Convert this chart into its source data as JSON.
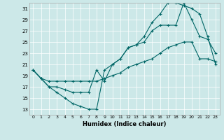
{
  "title": "",
  "xlabel": "Humidex (Indice chaleur)",
  "ylabel": "",
  "background_color": "#cce8e8",
  "grid_color": "#ffffff",
  "line_color": "#006666",
  "xlim": [
    -0.5,
    23.5
  ],
  "ylim": [
    12,
    32
  ],
  "yticks": [
    13,
    15,
    17,
    19,
    21,
    23,
    25,
    27,
    29,
    31
  ],
  "xticks": [
    0,
    1,
    2,
    3,
    4,
    5,
    6,
    7,
    8,
    9,
    10,
    11,
    12,
    13,
    14,
    15,
    16,
    17,
    18,
    19,
    20,
    21,
    22,
    23
  ],
  "series1": {
    "x": [
      0,
      1,
      2,
      3,
      4,
      5,
      6,
      7,
      8,
      9,
      10,
      11,
      12,
      13,
      14,
      15,
      16,
      17,
      18,
      19,
      20,
      21,
      22,
      23
    ],
    "y": [
      20,
      18.5,
      17,
      16,
      15,
      14,
      13.5,
      13,
      13,
      20,
      21,
      22,
      24,
      24.5,
      26,
      28.5,
      30,
      32,
      32,
      31.5,
      31,
      30,
      26,
      21
    ]
  },
  "series2": {
    "x": [
      0,
      1,
      2,
      3,
      4,
      5,
      6,
      7,
      8,
      9,
      10,
      11,
      12,
      13,
      14,
      15,
      16,
      17,
      18,
      19,
      20,
      21,
      22,
      23
    ],
    "y": [
      20,
      18.5,
      17,
      17,
      16.5,
      16,
      16,
      16,
      20,
      18,
      21,
      22,
      24,
      24.5,
      25,
      27,
      28,
      28,
      28,
      32,
      29,
      26,
      25.5,
      23
    ]
  },
  "series3": {
    "x": [
      0,
      1,
      2,
      3,
      4,
      5,
      6,
      7,
      8,
      9,
      10,
      11,
      12,
      13,
      14,
      15,
      16,
      17,
      18,
      19,
      20,
      21,
      22,
      23
    ],
    "y": [
      20,
      18.5,
      18,
      18,
      18,
      18,
      18,
      18,
      18,
      18.5,
      19,
      19.5,
      20.5,
      21,
      21.5,
      22,
      23,
      24,
      24.5,
      25,
      25,
      22,
      22,
      21.5
    ]
  }
}
